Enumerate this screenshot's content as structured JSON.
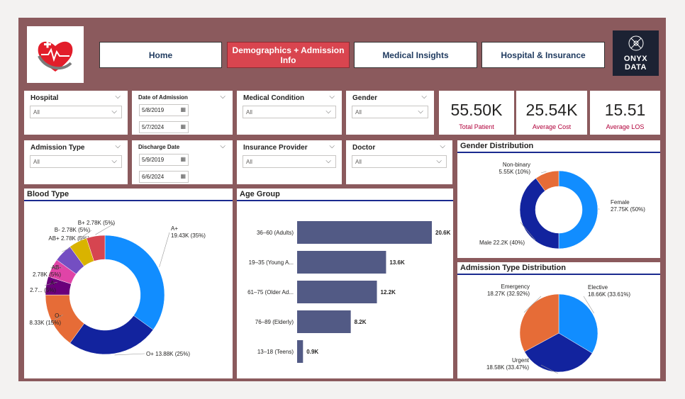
{
  "nav": {
    "home": "Home",
    "demographics": "Demographics + Admission Info",
    "medical": "Medical Insights",
    "hospital": "Hospital & Insurance"
  },
  "brand": {
    "line1": "ONYX",
    "line2": "DATA"
  },
  "slicers": {
    "hospital": {
      "title": "Hospital",
      "value": "All"
    },
    "admission_date": {
      "title": "Date of Admission",
      "start": "5/8/2019",
      "end": "5/7/2024"
    },
    "medical_condition": {
      "title": "Medical Condition",
      "value": "All"
    },
    "gender": {
      "title": "Gender",
      "value": "All"
    },
    "admission_type": {
      "title": "Admission Type",
      "value": "All"
    },
    "discharge_date": {
      "title": "Discharge Date",
      "start": "5/9/2019",
      "end": "6/6/2024"
    },
    "insurance_provider": {
      "title": "Insurance Provider",
      "value": "All"
    },
    "doctor": {
      "title": "Doctor",
      "value": "All"
    }
  },
  "kpis": [
    {
      "value": "55.50K",
      "label": "Total Patient"
    },
    {
      "value": "25.54K",
      "label": "Average Cost"
    },
    {
      "value": "15.51",
      "label": "Average LOS"
    }
  ],
  "chart_data": [
    {
      "type": "pie",
      "title": "Blood Type",
      "donut": true,
      "slices": [
        {
          "name": "A+",
          "value": 19430,
          "label": "A+",
          "label2": "19.43K (35%)",
          "color": "#118dff"
        },
        {
          "name": "O+",
          "value": 13880,
          "label": "O+ 13.88K (25%)",
          "label2": "",
          "color": "#12239e"
        },
        {
          "name": "O-",
          "value": 8330,
          "label": "O-",
          "label2": "8.33K (15%)",
          "color": "#e66c37"
        },
        {
          "name": "A-",
          "value": 2780,
          "label": "A-",
          "label2": "2.7... (5%)",
          "color": "#6b007b"
        },
        {
          "name": "AB-",
          "value": 2780,
          "label": "AB-",
          "label2": "2.78K (5%)",
          "color": "#e044a7"
        },
        {
          "name": "AB+",
          "value": 2780,
          "label": "AB+ 2.78K (5%)",
          "label2": "",
          "color": "#744ec2"
        },
        {
          "name": "B-",
          "value": 2780,
          "label": "B- 2.78K (5%)",
          "label2": "",
          "color": "#d9b300"
        },
        {
          "name": "B+",
          "value": 2780,
          "label": "B+ 2.78K (5%)",
          "label2": "",
          "color": "#d64550"
        }
      ]
    },
    {
      "type": "bar",
      "orientation": "horizontal",
      "title": "Age Group",
      "categories": [
        "36–60 (Adults)",
        "19–35 (Young A...",
        "61–75 (Older Ad...",
        "76–89 (Elderly)",
        "13–18 (Teens)"
      ],
      "values": [
        20.6,
        13.6,
        12.2,
        8.2,
        0.9
      ],
      "value_labels": [
        "20.6K",
        "13.6K",
        "12.2K",
        "8.2K",
        "0.9K"
      ],
      "xlim": [
        0,
        20.6
      ],
      "color": "#525a85"
    },
    {
      "type": "pie",
      "title": "Gender Distribution",
      "donut": true,
      "slices": [
        {
          "name": "Female",
          "value": 27750,
          "label": "Female",
          "label2": "27.75K (50%)",
          "color": "#118dff"
        },
        {
          "name": "Male",
          "value": 22200,
          "label": "Male 22.2K (40%)",
          "label2": "",
          "color": "#12239e"
        },
        {
          "name": "Non-binary",
          "value": 5550,
          "label": "Non-binary",
          "label2": "5.55K (10%)",
          "color": "#e66c37"
        }
      ]
    },
    {
      "type": "pie",
      "title": "Admission Type Distribution",
      "donut": false,
      "slices": [
        {
          "name": "Elective",
          "value": 18660,
          "label": "Elective",
          "label2": "18.66K (33.61%)",
          "color": "#118dff"
        },
        {
          "name": "Urgent",
          "value": 18580,
          "label": "Urgent",
          "label2": "18.58K (33.47%)",
          "color": "#12239e"
        },
        {
          "name": "Emergency",
          "value": 18270,
          "label": "Emergency",
          "label2": "18.27K (32.92%)",
          "color": "#e66c37"
        }
      ]
    }
  ]
}
